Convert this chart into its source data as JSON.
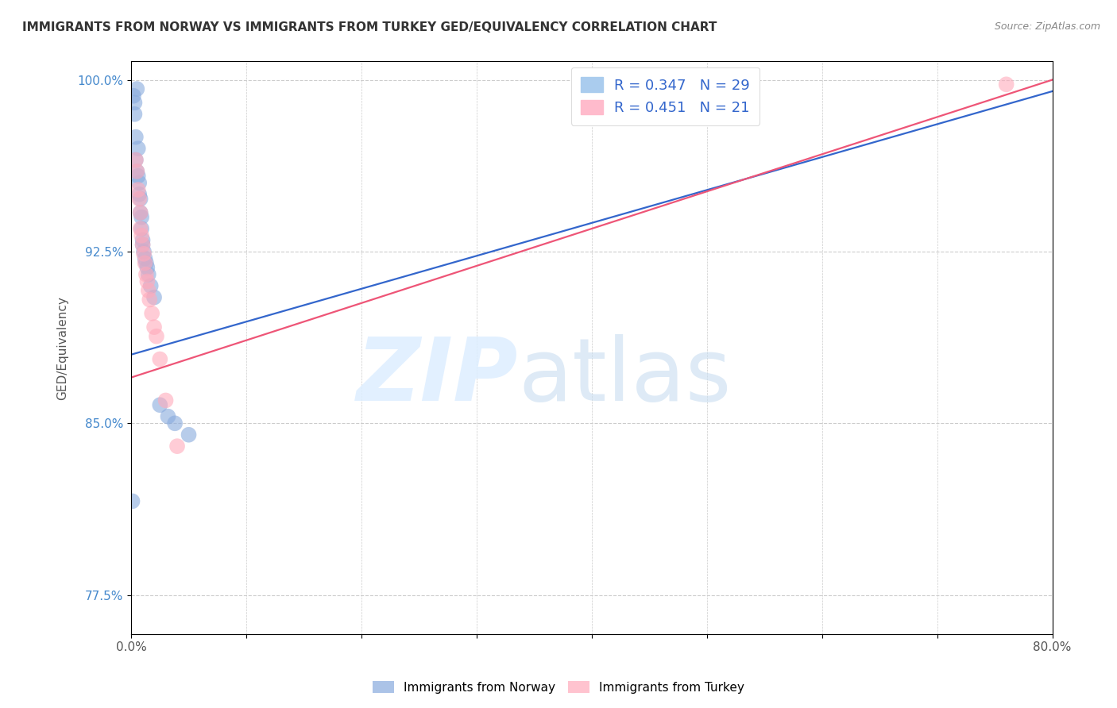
{
  "title": "IMMIGRANTS FROM NORWAY VS IMMIGRANTS FROM TURKEY GED/EQUIVALENCY CORRELATION CHART",
  "source": "Source: ZipAtlas.com",
  "ylabel": "GED/Equivalency",
  "xlim": [
    0.0,
    0.8
  ],
  "ylim": [
    0.758,
    1.008
  ],
  "xticks": [
    0.0,
    0.1,
    0.2,
    0.3,
    0.4,
    0.5,
    0.6,
    0.7,
    0.8
  ],
  "xticklabels": [
    "0.0%",
    "",
    "",
    "",
    "",
    "",
    "",
    "",
    "80.0%"
  ],
  "yticks": [
    0.775,
    0.85,
    0.925,
    1.0
  ],
  "yticklabels": [
    "77.5%",
    "85.0%",
    "92.5%",
    "100.0%"
  ],
  "norway_color": "#88aadd",
  "norway_line_color": "#3366cc",
  "turkey_color": "#ffaabb",
  "turkey_line_color": "#ee5577",
  "norway_R": 0.347,
  "norway_N": 29,
  "turkey_R": 0.451,
  "turkey_N": 21,
  "norway_x": [
    0.001,
    0.002,
    0.003,
    0.003,
    0.004,
    0.004,
    0.005,
    0.005,
    0.006,
    0.006,
    0.007,
    0.007,
    0.008,
    0.008,
    0.009,
    0.009,
    0.01,
    0.01,
    0.011,
    0.012,
    0.013,
    0.014,
    0.015,
    0.017,
    0.02,
    0.025,
    0.032,
    0.038,
    0.05
  ],
  "norway_y": [
    0.816,
    0.993,
    0.99,
    0.985,
    0.975,
    0.965,
    0.996,
    0.96,
    0.97,
    0.958,
    0.955,
    0.95,
    0.948,
    0.942,
    0.94,
    0.935,
    0.93,
    0.928,
    0.925,
    0.922,
    0.92,
    0.918,
    0.915,
    0.91,
    0.905,
    0.858,
    0.853,
    0.85,
    0.845
  ],
  "turkey_x": [
    0.004,
    0.005,
    0.006,
    0.007,
    0.008,
    0.008,
    0.009,
    0.01,
    0.011,
    0.012,
    0.013,
    0.014,
    0.015,
    0.016,
    0.018,
    0.02,
    0.022,
    0.025,
    0.03,
    0.04,
    0.76
  ],
  "turkey_y": [
    0.965,
    0.96,
    0.952,
    0.948,
    0.942,
    0.935,
    0.932,
    0.928,
    0.924,
    0.92,
    0.915,
    0.912,
    0.908,
    0.904,
    0.898,
    0.892,
    0.888,
    0.878,
    0.86,
    0.84,
    0.998
  ],
  "norway_line_x0": 0.0,
  "norway_line_x1": 0.8,
  "norway_line_y0": 0.88,
  "norway_line_y1": 0.995,
  "turkey_line_x0": 0.0,
  "turkey_line_x1": 0.8,
  "turkey_line_y0": 0.87,
  "turkey_line_y1": 1.0
}
